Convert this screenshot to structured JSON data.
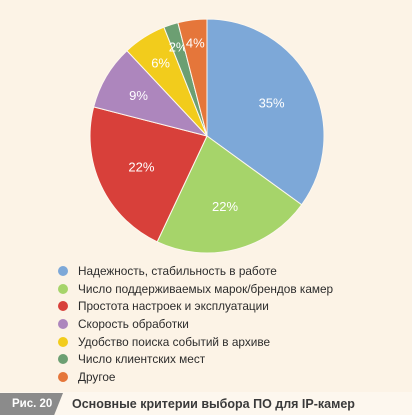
{
  "chart_data": {
    "type": "pie",
    "title": "",
    "slices": [
      {
        "label": "Надежность, стабильность в работе",
        "value": 35,
        "value_label": "35%",
        "color": "#7da8d8"
      },
      {
        "label": "Число поддерживаемых марок/брендов камер",
        "value": 22,
        "value_label": "22%",
        "color": "#a6d46a"
      },
      {
        "label": "Простота настроек и эксплуатации",
        "value": 22,
        "value_label": "22%",
        "color": "#d8403a"
      },
      {
        "label": "Скорость обработки",
        "value": 9,
        "value_label": "9%",
        "color": "#ad86bd"
      },
      {
        "label": "Удобство поиска событий в архиве",
        "value": 6,
        "value_label": "6%",
        "color": "#f2cc1c"
      },
      {
        "label": "Число клиентских мест",
        "value": 2,
        "value_label": "2%",
        "color": "#6c9f72"
      },
      {
        "label": "Другое",
        "value": 4,
        "value_label": "4%",
        "color": "#e5763a"
      }
    ],
    "start_angle_deg": 0,
    "direction": "clockwise",
    "legend_position": "bottom"
  },
  "caption": {
    "figure_label": "Рис. 20",
    "text": "Основные критерии выбора ПО для IP-камер"
  }
}
